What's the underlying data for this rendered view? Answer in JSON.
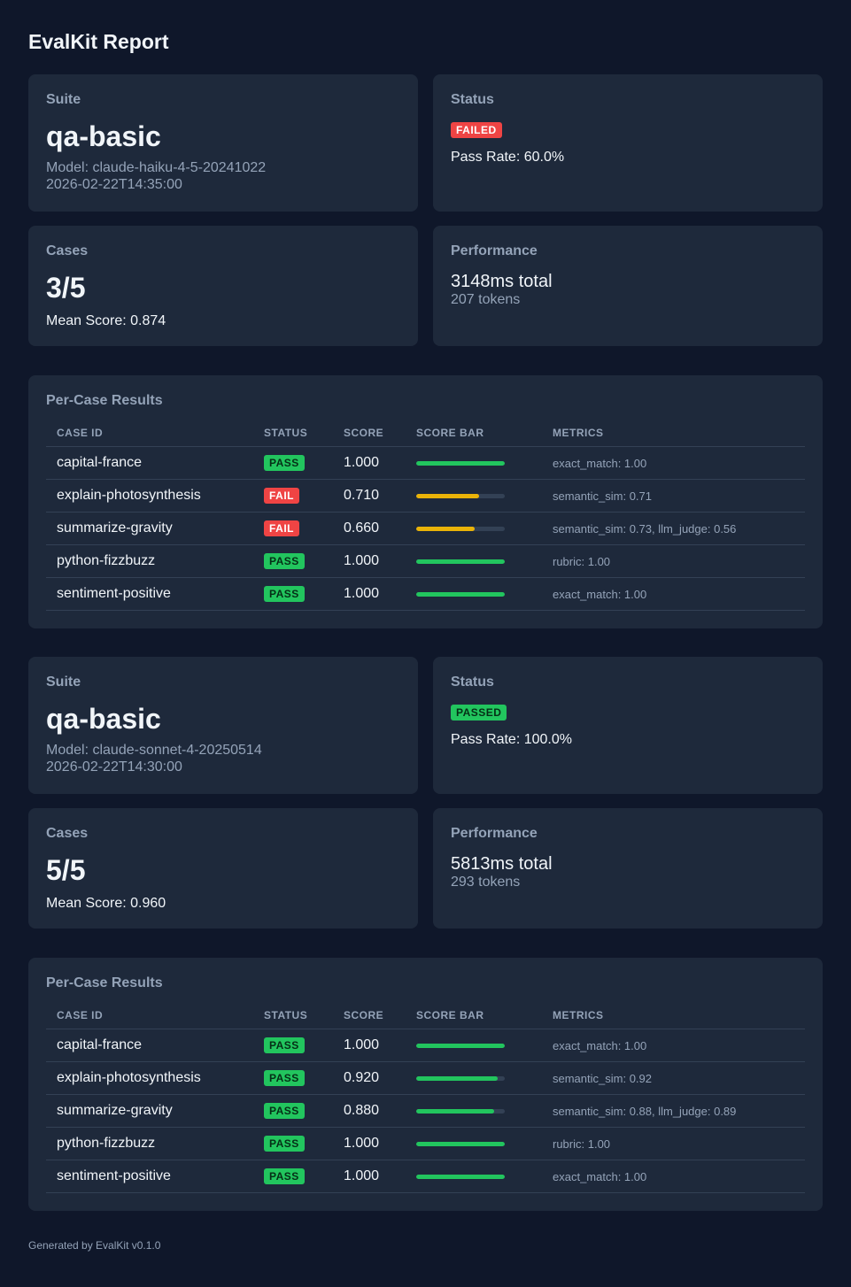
{
  "title": "EvalKit Report",
  "labels": {
    "suite": "Suite",
    "status": "Status",
    "cases": "Cases",
    "performance": "Performance",
    "per_case": "Per-Case Results"
  },
  "columns": [
    "CASE ID",
    "STATUS",
    "SCORE",
    "SCORE BAR",
    "METRICS"
  ],
  "colors": {
    "pass": "#22c55e",
    "fail": "#ef4444",
    "warn": "#eab308"
  },
  "runs": [
    {
      "suite": "qa-basic",
      "model": "Model: claude-haiku-4-5-20241022",
      "timestamp": "2026-02-22T14:35:00",
      "status": "FAILED",
      "status_kind": "fail",
      "pass_rate": "Pass Rate: 60.0%",
      "cases": "3/5",
      "mean_score": "Mean Score: 0.874",
      "perf_total": "3148ms total",
      "perf_tokens": "207 tokens",
      "rows": [
        {
          "id": "capital-france",
          "status": "PASS",
          "kind": "pass",
          "score": "1.000",
          "value": 1.0,
          "metrics": "exact_match: 1.00"
        },
        {
          "id": "explain-photosynthesis",
          "status": "FAIL",
          "kind": "fail",
          "score": "0.710",
          "value": 0.71,
          "metrics": "semantic_sim: 0.71"
        },
        {
          "id": "summarize-gravity",
          "status": "FAIL",
          "kind": "fail",
          "score": "0.660",
          "value": 0.66,
          "metrics": "semantic_sim: 0.73, llm_judge: 0.56"
        },
        {
          "id": "python-fizzbuzz",
          "status": "PASS",
          "kind": "pass",
          "score": "1.000",
          "value": 1.0,
          "metrics": "rubric: 1.00"
        },
        {
          "id": "sentiment-positive",
          "status": "PASS",
          "kind": "pass",
          "score": "1.000",
          "value": 1.0,
          "metrics": "exact_match: 1.00"
        }
      ]
    },
    {
      "suite": "qa-basic",
      "model": "Model: claude-sonnet-4-20250514",
      "timestamp": "2026-02-22T14:30:00",
      "status": "PASSED",
      "status_kind": "pass",
      "pass_rate": "Pass Rate: 100.0%",
      "cases": "5/5",
      "mean_score": "Mean Score: 0.960",
      "perf_total": "5813ms total",
      "perf_tokens": "293 tokens",
      "rows": [
        {
          "id": "capital-france",
          "status": "PASS",
          "kind": "pass",
          "score": "1.000",
          "value": 1.0,
          "metrics": "exact_match: 1.00"
        },
        {
          "id": "explain-photosynthesis",
          "status": "PASS",
          "kind": "pass",
          "score": "0.920",
          "value": 0.92,
          "metrics": "semantic_sim: 0.92"
        },
        {
          "id": "summarize-gravity",
          "status": "PASS",
          "kind": "pass",
          "score": "0.880",
          "value": 0.88,
          "metrics": "semantic_sim: 0.88, llm_judge: 0.89"
        },
        {
          "id": "python-fizzbuzz",
          "status": "PASS",
          "kind": "pass",
          "score": "1.000",
          "value": 1.0,
          "metrics": "rubric: 1.00"
        },
        {
          "id": "sentiment-positive",
          "status": "PASS",
          "kind": "pass",
          "score": "1.000",
          "value": 1.0,
          "metrics": "exact_match: 1.00"
        }
      ]
    }
  ],
  "footer": "Generated by EvalKit v0.1.0"
}
